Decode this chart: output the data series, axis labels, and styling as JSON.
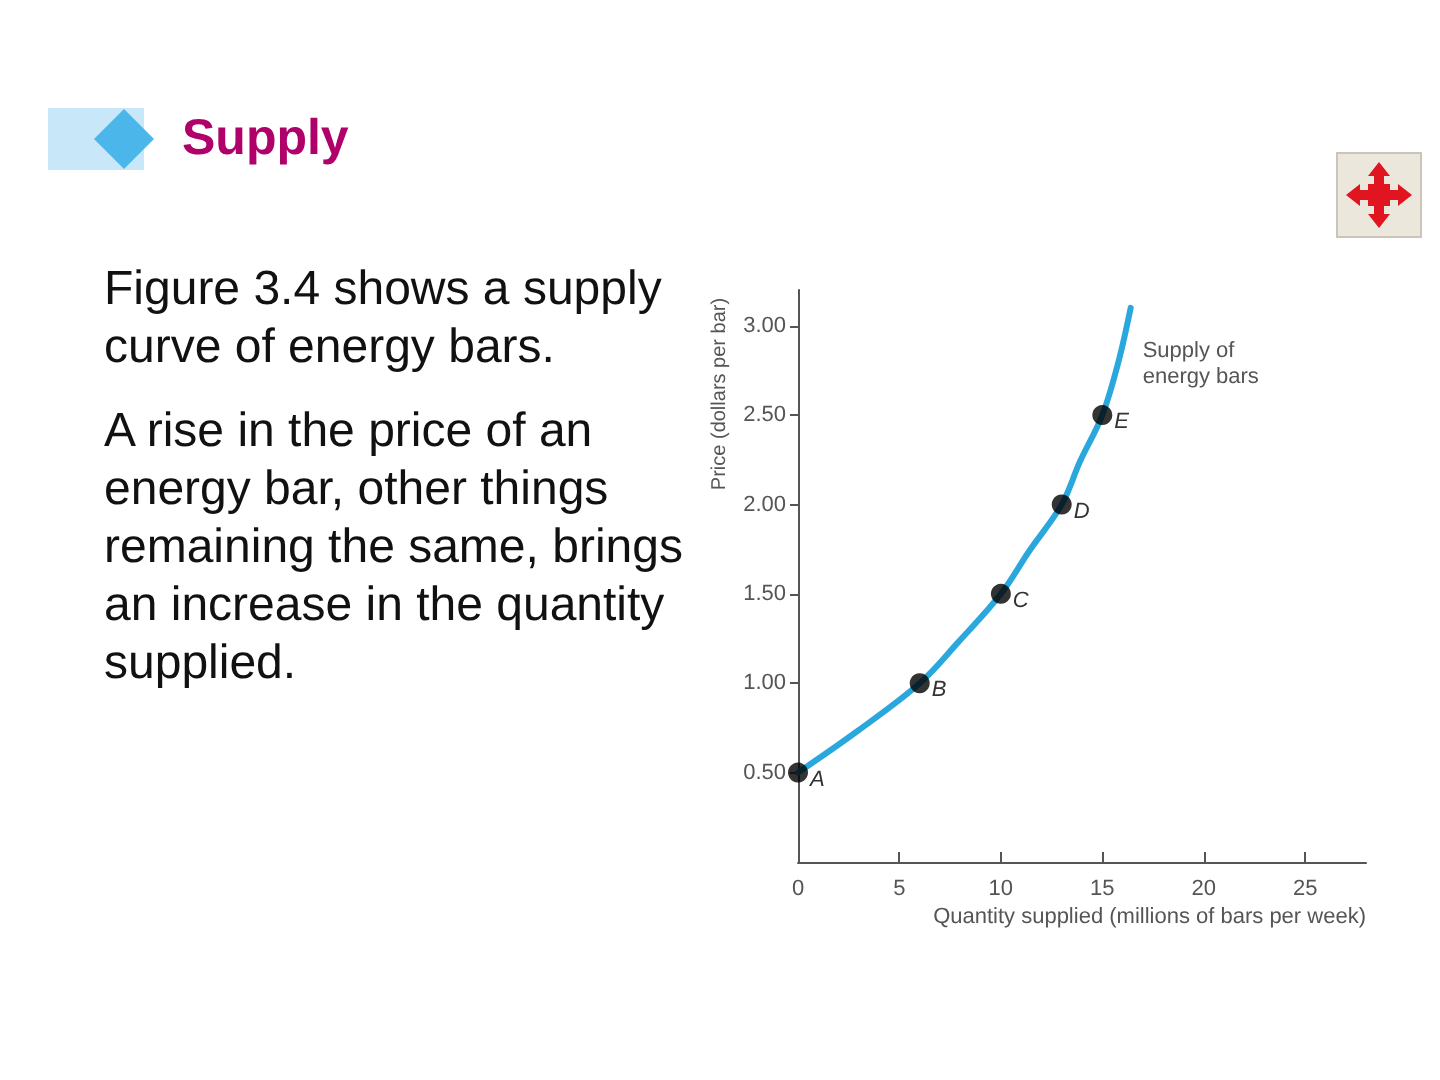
{
  "chart_data": {
    "type": "line",
    "title": "Supply",
    "annotations": [
      "Figure 3.4 shows a supply curve of energy bars.",
      "A rise in the price of an energy bar, other things remaining the same, brings an increase in the quantity supplied.",
      {
        "text": "A",
        "x": 0,
        "y": 0.5
      },
      {
        "text": "B",
        "x": 6,
        "y": 1
      },
      {
        "text": "C",
        "x": 10,
        "y": 1.5
      },
      {
        "text": "D",
        "x": 13,
        "y": 2
      },
      {
        "text": "E",
        "x": 15,
        "y": 2.5
      }
    ],
    "xlabel": "Quantity supplied (millions of bars per week)",
    "ylabel": "Price (dollars per bar)",
    "series": [
      {
        "name": "Supply of energy bars",
        "color": "#2aa7dc",
        "x": [
          0,
          2.9,
          6,
          7.9,
          10,
          11.4,
          13,
          13.9,
          15,
          15.8,
          16.4
        ],
        "values": [
          0.5,
          0.73,
          1,
          1.23,
          1.5,
          1.74,
          2,
          2.24,
          2.5,
          2.8,
          3.1
        ],
        "marker": "none"
      },
      {
        "type": "scatter",
        "color": "#000000",
        "x": [
          0,
          6,
          10,
          13,
          15
        ],
        "values": [
          0.5,
          1,
          1.5,
          2,
          2.5
        ],
        "marker": "circle"
      }
    ],
    "xlim": [
      0,
      28
    ],
    "xticks": [
      0,
      5,
      10,
      15,
      20,
      25
    ],
    "ylim": [
      0,
      3.2
    ],
    "yticks": [
      {
        "value": 0.5,
        "label": "0.50"
      },
      {
        "value": 1,
        "label": "1.00"
      },
      {
        "value": 1.5,
        "label": "1.50"
      },
      {
        "value": 2,
        "label": "2.00"
      },
      {
        "value": 2.5,
        "label": "2.50"
      },
      {
        "value": 3,
        "label": "3.00"
      }
    ],
    "grid": false,
    "legend": false,
    "line_style": "solid"
  }
}
